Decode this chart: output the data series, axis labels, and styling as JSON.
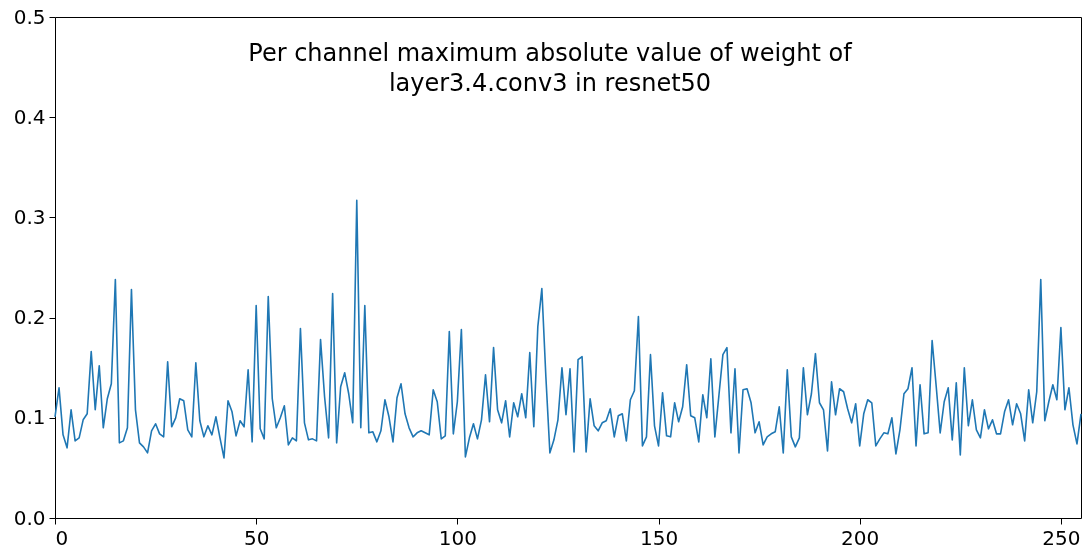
{
  "chart_data": {
    "type": "line",
    "title": [
      "Per channel maximum absolute value of weight of",
      "layer3.4.conv3 in resnet50"
    ],
    "x": [
      0,
      1,
      2,
      3,
      4,
      5,
      6,
      7,
      8,
      9,
      10,
      11,
      12,
      13,
      14,
      15,
      16,
      17,
      18,
      19,
      20,
      21,
      22,
      23,
      24,
      25,
      26,
      27,
      28,
      29,
      30,
      31,
      32,
      33,
      34,
      35,
      36,
      37,
      38,
      39,
      40,
      41,
      42,
      43,
      44,
      45,
      46,
      47,
      48,
      49,
      50,
      51,
      52,
      53,
      54,
      55,
      56,
      57,
      58,
      59,
      60,
      61,
      62,
      63,
      64,
      65,
      66,
      67,
      68,
      69,
      70,
      71,
      72,
      73,
      74,
      75,
      76,
      77,
      78,
      79,
      80,
      81,
      82,
      83,
      84,
      85,
      86,
      87,
      88,
      89,
      90,
      91,
      92,
      93,
      94,
      95,
      96,
      97,
      98,
      99,
      100,
      101,
      102,
      103,
      104,
      105,
      106,
      107,
      108,
      109,
      110,
      111,
      112,
      113,
      114,
      115,
      116,
      117,
      118,
      119,
      120,
      121,
      122,
      123,
      124,
      125,
      126,
      127,
      128,
      129,
      130,
      131,
      132,
      133,
      134,
      135,
      136,
      137,
      138,
      139,
      140,
      141,
      142,
      143,
      144,
      145,
      146,
      147,
      148,
      149,
      150,
      151,
      152,
      153,
      154,
      155,
      156,
      157,
      158,
      159,
      160,
      161,
      162,
      163,
      164,
      165,
      166,
      167,
      168,
      169,
      170,
      171,
      172,
      173,
      174,
      175,
      176,
      177,
      178,
      179,
      180,
      181,
      182,
      183,
      184,
      185,
      186,
      187,
      188,
      189,
      190,
      191,
      192,
      193,
      194,
      195,
      196,
      197,
      198,
      199,
      200,
      201,
      202,
      203,
      204,
      205,
      206,
      207,
      208,
      209,
      210,
      211,
      212,
      213,
      214,
      215,
      216,
      217,
      218,
      219,
      220,
      221,
      222,
      223,
      224,
      225,
      226,
      227,
      228,
      229,
      230,
      231,
      232,
      233,
      234,
      235,
      236,
      237,
      238,
      239,
      240,
      241,
      242,
      243,
      244,
      245,
      246,
      247,
      248,
      249,
      250,
      251,
      252,
      253,
      254,
      255
    ],
    "series": [
      {
        "color": "#1f77b4",
        "values": [
          0.101,
          0.13,
          0.083,
          0.07,
          0.108,
          0.077,
          0.08,
          0.098,
          0.104,
          0.166,
          0.108,
          0.152,
          0.09,
          0.119,
          0.134,
          0.238,
          0.075,
          0.077,
          0.09,
          0.228,
          0.108,
          0.075,
          0.071,
          0.065,
          0.087,
          0.094,
          0.084,
          0.081,
          0.156,
          0.091,
          0.1,
          0.119,
          0.117,
          0.088,
          0.081,
          0.155,
          0.097,
          0.081,
          0.092,
          0.083,
          0.101,
          0.08,
          0.06,
          0.117,
          0.106,
          0.082,
          0.097,
          0.091,
          0.148,
          0.076,
          0.212,
          0.089,
          0.079,
          0.221,
          0.119,
          0.09,
          0.1,
          0.112,
          0.073,
          0.08,
          0.077,
          0.189,
          0.095,
          0.078,
          0.079,
          0.077,
          0.178,
          0.121,
          0.08,
          0.224,
          0.075,
          0.131,
          0.145,
          0.124,
          0.095,
          0.317,
          0.09,
          0.212,
          0.085,
          0.086,
          0.076,
          0.087,
          0.118,
          0.101,
          0.076,
          0.12,
          0.134,
          0.104,
          0.09,
          0.081,
          0.085,
          0.087,
          0.085,
          0.083,
          0.128,
          0.116,
          0.079,
          0.082,
          0.186,
          0.084,
          0.116,
          0.188,
          0.061,
          0.08,
          0.094,
          0.079,
          0.098,
          0.143,
          0.096,
          0.17,
          0.108,
          0.095,
          0.117,
          0.081,
          0.115,
          0.101,
          0.124,
          0.1,
          0.165,
          0.091,
          0.191,
          0.229,
          0.141,
          0.065,
          0.078,
          0.098,
          0.15,
          0.103,
          0.149,
          0.066,
          0.158,
          0.161,
          0.066,
          0.119,
          0.092,
          0.087,
          0.095,
          0.097,
          0.109,
          0.081,
          0.102,
          0.104,
          0.077,
          0.118,
          0.127,
          0.201,
          0.072,
          0.081,
          0.163,
          0.092,
          0.072,
          0.125,
          0.082,
          0.081,
          0.115,
          0.096,
          0.111,
          0.153,
          0.102,
          0.1,
          0.076,
          0.123,
          0.1,
          0.159,
          0.081,
          0.122,
          0.163,
          0.17,
          0.085,
          0.149,
          0.065,
          0.128,
          0.129,
          0.115,
          0.085,
          0.096,
          0.073,
          0.081,
          0.084,
          0.086,
          0.111,
          0.065,
          0.148,
          0.081,
          0.071,
          0.08,
          0.15,
          0.103,
          0.124,
          0.164,
          0.115,
          0.108,
          0.067,
          0.136,
          0.103,
          0.129,
          0.126,
          0.109,
          0.095,
          0.114,
          0.072,
          0.104,
          0.118,
          0.115,
          0.072,
          0.079,
          0.085,
          0.084,
          0.1,
          0.064,
          0.088,
          0.124,
          0.129,
          0.15,
          0.072,
          0.133,
          0.084,
          0.085,
          0.177,
          0.132,
          0.085,
          0.116,
          0.13,
          0.078,
          0.135,
          0.063,
          0.15,
          0.092,
          0.118,
          0.088,
          0.08,
          0.108,
          0.089,
          0.098,
          0.084,
          0.084,
          0.106,
          0.118,
          0.093,
          0.114,
          0.104,
          0.077,
          0.128,
          0.095,
          0.126,
          0.238,
          0.097,
          0.116,
          0.133,
          0.118,
          0.19,
          0.108,
          0.13,
          0.093,
          0.074,
          0.104
        ]
      }
    ],
    "xlim": [
      0,
      255
    ],
    "xticks": [
      0,
      50,
      100,
      150,
      200,
      250
    ],
    "ylim": [
      0,
      0.5
    ],
    "yticks": [
      {
        "value": 0,
        "label": "0.0"
      },
      {
        "value": 0.1,
        "label": "0.1"
      },
      {
        "value": 0.2,
        "label": "0.2"
      },
      {
        "value": 0.3,
        "label": "0.3"
      },
      {
        "value": 0.4,
        "label": "0.4"
      },
      {
        "value": 0.5,
        "label": "0.5"
      }
    ],
    "grid": false,
    "marker": "none",
    "line_style": "solid"
  }
}
